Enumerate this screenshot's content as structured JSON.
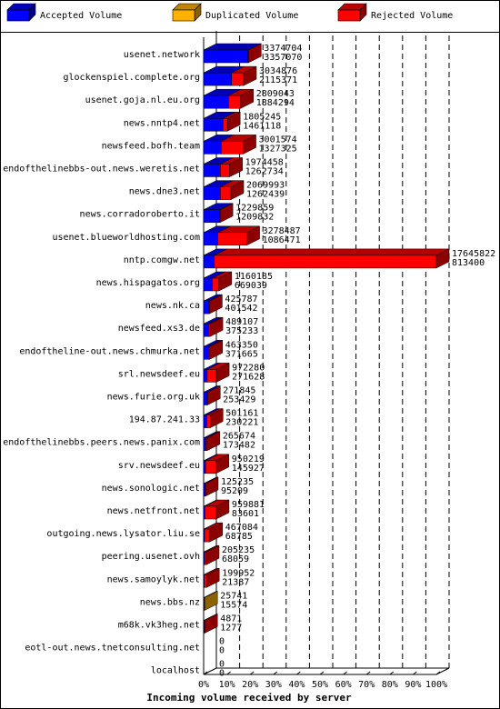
{
  "chart_data": {
    "type": "bar",
    "orientation": "horizontal",
    "stacking": "stacked",
    "xlabel": "Incoming volume received by server",
    "xlim": [
      0,
      100
    ],
    "xticks": [
      "0%",
      "10%",
      "20%",
      "30%",
      "40%",
      "50%",
      "60%",
      "70%",
      "80%",
      "90%",
      "100%"
    ],
    "grid": true,
    "legend_position": "top",
    "series": [
      {
        "name": "Accepted Volume",
        "color": "#0000ff"
      },
      {
        "name": "Duplicated Volume",
        "color": "#ffb000"
      },
      {
        "name": "Rejected Volume",
        "color": "#ff0000"
      }
    ],
    "rows": [
      {
        "label": "usenet.network",
        "top": "3374704",
        "bottom": "3357070",
        "a": 3357070,
        "d": 0,
        "r": 17634
      },
      {
        "label": "glockenspiel.complete.org",
        "top": "3034876",
        "bottom": "2115371",
        "a": 2115371,
        "d": 0,
        "r": 919505
      },
      {
        "label": "usenet.goja.nl.eu.org",
        "top": "2809043",
        "bottom": "1884294",
        "a": 1884294,
        "d": 0,
        "r": 924749
      },
      {
        "label": "news.nntp4.net",
        "top": "1805245",
        "bottom": "1461118",
        "a": 1461118,
        "d": 0,
        "r": 344127
      },
      {
        "label": "newsfeed.bofh.team",
        "top": "3001574",
        "bottom": "1327325",
        "a": 1327325,
        "d": 0,
        "r": 1674249
      },
      {
        "label": "endofthelinebbs-out.news.weretis.net",
        "top": "1974458",
        "bottom": "1262734",
        "a": 1262734,
        "d": 0,
        "r": 711724
      },
      {
        "label": "news.dne3.net",
        "top": "2069993",
        "bottom": "1262439",
        "a": 1262439,
        "d": 0,
        "r": 807554
      },
      {
        "label": "news.corradoroberto.it",
        "top": "1229859",
        "bottom": "1209832",
        "a": 1209832,
        "d": 0,
        "r": 20027
      },
      {
        "label": "usenet.blueworldhosting.com",
        "top": "3278487",
        "bottom": "1086471",
        "a": 1086471,
        "d": 0,
        "r": 2192016
      },
      {
        "label": "nntp.comgw.net",
        "top": "17645822",
        "bottom": "813400",
        "a": 813400,
        "d": 0,
        "r": 16832422
      },
      {
        "label": "news.hispagatos.org",
        "top": "1160185",
        "bottom": "669039",
        "a": 669039,
        "d": 0,
        "r": 491146
      },
      {
        "label": "news.nk.ca",
        "top": "425787",
        "bottom": "401542",
        "a": 401542,
        "d": 0,
        "r": 24245
      },
      {
        "label": "newsfeed.xs3.de",
        "top": "489107",
        "bottom": "375233",
        "a": 375233,
        "d": 0,
        "r": 113874
      },
      {
        "label": "endoftheline-out.news.chmurka.net",
        "top": "463350",
        "bottom": "371665",
        "a": 371665,
        "d": 0,
        "r": 91685
      },
      {
        "label": "srl.newsdeef.eu",
        "top": "972280",
        "bottom": "271628",
        "a": 271628,
        "d": 0,
        "r": 700652
      },
      {
        "label": "news.furie.org.uk",
        "top": "271845",
        "bottom": "253429",
        "a": 253429,
        "d": 0,
        "r": 18416
      },
      {
        "label": "194.87.241.33",
        "top": "501161",
        "bottom": "230221",
        "a": 230221,
        "d": 0,
        "r": 270940
      },
      {
        "label": "endofthelinebbs.peers.news.panix.com",
        "top": "265674",
        "bottom": "173482",
        "a": 173482,
        "d": 0,
        "r": 92192
      },
      {
        "label": "srv.newsdeef.eu",
        "top": "950219",
        "bottom": "145927",
        "a": 145927,
        "d": 0,
        "r": 804292
      },
      {
        "label": "news.sonologic.net",
        "top": "125235",
        "bottom": "95209",
        "a": 95209,
        "d": 0,
        "r": 30026
      },
      {
        "label": "news.netfront.net",
        "top": "959881",
        "bottom": "83601",
        "a": 83601,
        "d": 0,
        "r": 876280
      },
      {
        "label": "outgoing.news.lysator.liu.se",
        "top": "467084",
        "bottom": "68785",
        "a": 68785,
        "d": 0,
        "r": 398299
      },
      {
        "label": "peering.usenet.ovh",
        "top": "205235",
        "bottom": "68059",
        "a": 68059,
        "d": 0,
        "r": 137176
      },
      {
        "label": "news.samoylyk.net",
        "top": "199952",
        "bottom": "21387",
        "a": 21387,
        "d": 0,
        "r": 178565
      },
      {
        "label": "news.bbs.nz",
        "top": "25741",
        "bottom": "15574",
        "a": 15574,
        "d": 10167,
        "r": 0
      },
      {
        "label": "m68k.vk3heg.net",
        "top": "4871",
        "bottom": "1277",
        "a": 1277,
        "d": 0,
        "r": 3594
      },
      {
        "label": "eotl-out.news.tnetconsulting.net",
        "top": "0",
        "bottom": "0",
        "a": 0,
        "d": 0,
        "r": 0
      },
      {
        "label": "localhost",
        "top": "0",
        "bottom": "0",
        "a": 0,
        "d": 0,
        "r": 0
      }
    ]
  }
}
